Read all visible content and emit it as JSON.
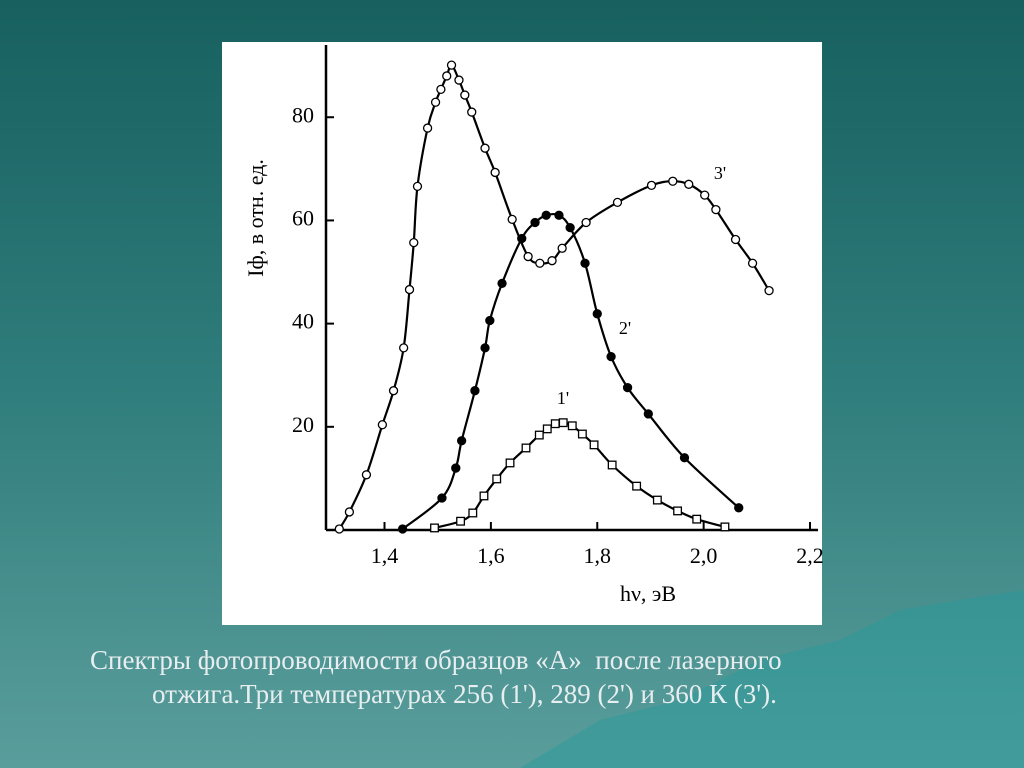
{
  "chart_data": {
    "type": "line",
    "x_label": "hν, эВ",
    "y_label": "Iф, в отн. ед.",
    "xlim": [
      1.29,
      2.215
    ],
    "ylim": [
      0,
      94
    ],
    "xticks": [
      {
        "value": 1.4,
        "label": "1,4"
      },
      {
        "value": 1.6,
        "label": "1,6"
      },
      {
        "value": 1.8,
        "label": "1,8"
      },
      {
        "value": 2.0,
        "label": "2,0"
      },
      {
        "value": 2.2,
        "label": "2,2"
      }
    ],
    "yticks": [
      20,
      40,
      60,
      80
    ],
    "series": [
      {
        "name": "1'",
        "color": "#000000",
        "marker": "square-open",
        "x": [
          1.494,
          1.543,
          1.566,
          1.587,
          1.611,
          1.636,
          1.666,
          1.691,
          1.706,
          1.721,
          1.736,
          1.753,
          1.772,
          1.794,
          1.828,
          1.874,
          1.913,
          1.951,
          1.987,
          2.04
        ],
        "values": [
          0.4,
          1.7,
          3.3,
          6.6,
          9.9,
          13,
          15.9,
          18.4,
          19.6,
          20.6,
          20.8,
          20.2,
          18.6,
          16.5,
          12.6,
          8.5,
          5.8,
          3.7,
          2.1,
          0.6
        ]
      },
      {
        "name": "2'",
        "color": "#000000",
        "marker": "circle-filled",
        "x": [
          1.434,
          1.508,
          1.534,
          1.545,
          1.57,
          1.589,
          1.598,
          1.621,
          1.658,
          1.683,
          1.704,
          1.728,
          1.749,
          1.777,
          1.8,
          1.826,
          1.857,
          1.896,
          1.964,
          2.066
        ],
        "values": [
          0.2,
          6.2,
          12,
          17.3,
          27,
          35.3,
          40.6,
          47.8,
          56.5,
          59.6,
          61,
          61,
          58.6,
          51.7,
          41.9,
          33.6,
          27.6,
          22.5,
          14,
          4.3
        ]
      },
      {
        "name": "3'",
        "color": "#000000",
        "marker": "circle-open",
        "x": [
          1.315,
          1.334,
          1.366,
          1.396,
          1.417,
          1.436,
          1.447,
          1.455,
          1.462,
          1.481,
          1.496,
          1.506,
          1.517,
          1.526,
          1.54,
          1.551,
          1.564,
          1.589,
          1.608,
          1.64,
          1.67,
          1.692,
          1.715,
          1.734,
          1.779,
          1.838,
          1.902,
          1.942,
          1.972,
          2.002,
          2.023,
          2.06,
          2.092,
          2.123
        ],
        "values": [
          0.2,
          3.5,
          10.7,
          20.4,
          27,
          35.3,
          46.6,
          55.7,
          66.6,
          77.9,
          82.9,
          85.4,
          88,
          90.1,
          87.2,
          84.3,
          81,
          74,
          69.3,
          60.2,
          53,
          51.7,
          52.2,
          54.6,
          59.6,
          63.5,
          66.8,
          67.6,
          67,
          64.9,
          62.1,
          56.3,
          51.7,
          46.4
        ]
      }
    ]
  },
  "caption_lines": [
    "Спектры фотопроводимости образцов «А»  после лазерного",
    "отжига.Три температурах 256 (1'), 289 (2') и 360 К (3')."
  ]
}
